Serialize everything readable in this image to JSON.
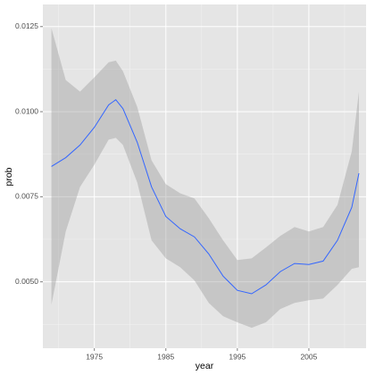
{
  "chart_data": {
    "type": "smooth",
    "x_label": "year",
    "y_label": "prob",
    "x": [
      1969,
      1971,
      1973,
      1975,
      1977,
      1978,
      1979,
      1981,
      1983,
      1985,
      1987,
      1989,
      1991,
      1993,
      1995,
      1997,
      1999,
      2001,
      2003,
      2005,
      2007,
      2009,
      2011,
      2012
    ],
    "values": [
      0.00839,
      0.00865,
      0.00902,
      0.00954,
      0.0102,
      0.01035,
      0.01009,
      0.0091,
      0.00779,
      0.00692,
      0.00656,
      0.00632,
      0.00582,
      0.00517,
      0.00475,
      0.00465,
      0.00491,
      0.0053,
      0.00554,
      0.00551,
      0.00561,
      0.00622,
      0.00719,
      0.00819
    ],
    "upper": [
      0.01245,
      0.01093,
      0.01059,
      0.01101,
      0.01145,
      0.0115,
      0.01119,
      0.01014,
      0.00857,
      0.00787,
      0.0076,
      0.00745,
      0.00687,
      0.00622,
      0.00564,
      0.00569,
      0.00601,
      0.00635,
      0.00661,
      0.00648,
      0.00661,
      0.00726,
      0.00883,
      0.01059
    ],
    "lower": [
      0.00433,
      0.00648,
      0.00779,
      0.00844,
      0.00918,
      0.00923,
      0.00902,
      0.00792,
      0.00622,
      0.00569,
      0.00543,
      0.00504,
      0.00438,
      0.00399,
      0.00381,
      0.00365,
      0.00381,
      0.0042,
      0.00438,
      0.00446,
      0.00451,
      0.00491,
      0.00538,
      0.00543
    ],
    "color": "#3366ff",
    "band_color": "#999999",
    "xlim": [
      1967.8,
      2013.0
    ],
    "xticks": [
      1975,
      1985,
      1995,
      2005
    ],
    "ylim": [
      0.00305,
      0.01315
    ],
    "yticks": [
      {
        "value": 0.005,
        "label": "0.0050"
      },
      0.0075,
      {
        "value": 0.01,
        "label": "0.0100"
      },
      0.0125
    ],
    "grid": true
  }
}
